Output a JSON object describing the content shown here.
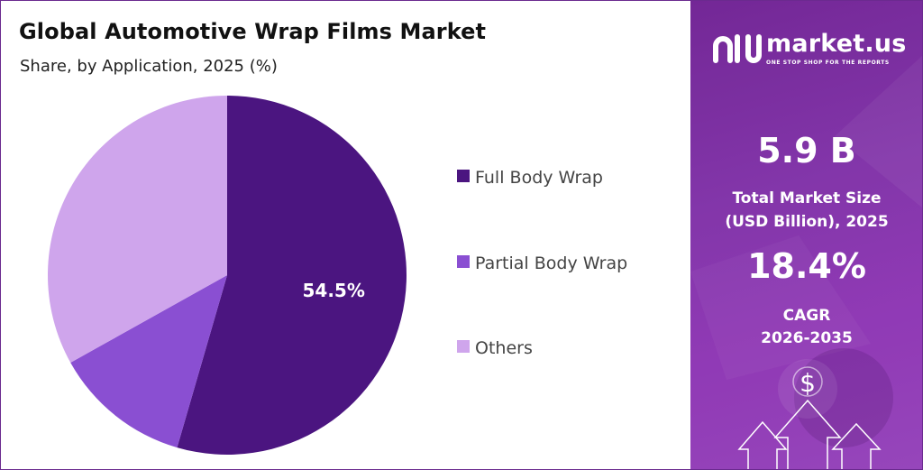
{
  "header": {
    "title": "Global Automotive Wrap Films Market",
    "subtitle": "Share, by Application, 2025 (%)"
  },
  "chart_data": {
    "type": "pie",
    "categories": [
      "Full Body Wrap",
      "Partial Body Wrap",
      "Others"
    ],
    "values": [
      54.5,
      12.4,
      33.1
    ],
    "data_labels": [
      "54.5%",
      "",
      ""
    ],
    "colors": [
      "#4b1580",
      "#8a4fd2",
      "#cfa5ec"
    ],
    "start_angle_deg": 0,
    "direction": "clockwise",
    "legend_position": "right"
  },
  "brand": {
    "name": "market.us",
    "tagline": "ONE STOP SHOP FOR THE REPORTS",
    "logo_icon": "market-us-logo-icon"
  },
  "stats": {
    "market_size_value": "5.9 B",
    "market_size_label_line1": "Total Market Size",
    "market_size_label_line2": "(USD Billion), 2025",
    "cagr_value": "18.4%",
    "cagr_label_line1": "CAGR",
    "cagr_label_line2": "2026-2035"
  },
  "decorations": {
    "dollar_symbol": "$",
    "arrows_icon": "growth-arrows-icon"
  },
  "theme": {
    "panel_color": "#8b3bb3",
    "border_color": "#6b2a8f"
  }
}
